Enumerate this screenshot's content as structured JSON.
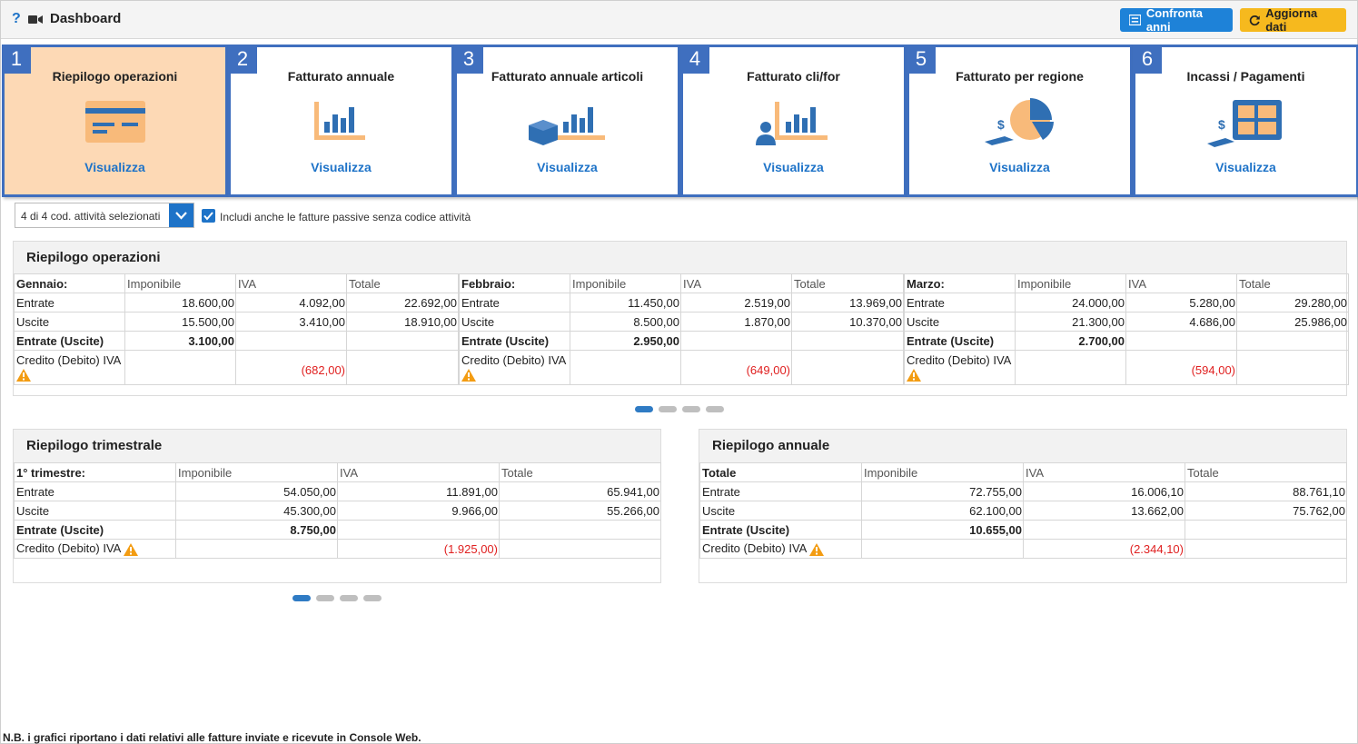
{
  "header": {
    "help": "?",
    "title": "Dashboard",
    "compare_label": "Confronta anni",
    "refresh_label": "Aggiorna dati"
  },
  "tiles": [
    {
      "num": "1",
      "label": "Riepilogo operazioni",
      "link": "Visualizza",
      "icon": "card-icon",
      "active": true
    },
    {
      "num": "2",
      "label": "Fatturato annuale",
      "link": "Visualizza",
      "icon": "bar-chart-icon"
    },
    {
      "num": "3",
      "label": "Fatturato annuale articoli",
      "link": "Visualizza",
      "icon": "box-chart-icon"
    },
    {
      "num": "4",
      "label": "Fatturato cli/for",
      "link": "Visualizza",
      "icon": "person-chart-icon"
    },
    {
      "num": "5",
      "label": "Fatturato per regione",
      "link": "Visualizza",
      "icon": "pie-money-icon"
    },
    {
      "num": "6",
      "label": "Incassi / Pagamenti",
      "link": "Visualizza",
      "icon": "grid-money-icon"
    }
  ],
  "filter": {
    "selected": "4 di 4 cod. attività selezionati",
    "checkbox_label": "Includi anche le fatture passive senza codice attività",
    "checked": true
  },
  "ops": {
    "title": "Riepilogo operazioni",
    "cols": [
      "Imponibile",
      "IVA",
      "Totale"
    ],
    "row_labels": [
      "Entrate",
      "Uscite",
      "Entrate (Uscite)",
      "Credito (Debito) IVA"
    ],
    "months": [
      {
        "name": "Gennaio:",
        "entrate": [
          "18.600,00",
          "4.092,00",
          "22.692,00"
        ],
        "uscite": [
          "15.500,00",
          "3.410,00",
          "18.910,00"
        ],
        "net": "3.100,00",
        "iva": "(682,00)"
      },
      {
        "name": "Febbraio:",
        "entrate": [
          "11.450,00",
          "2.519,00",
          "13.969,00"
        ],
        "uscite": [
          "8.500,00",
          "1.870,00",
          "10.370,00"
        ],
        "net": "2.950,00",
        "iva": "(649,00)"
      },
      {
        "name": "Marzo:",
        "entrate": [
          "24.000,00",
          "5.280,00",
          "29.280,00"
        ],
        "uscite": [
          "21.300,00",
          "4.686,00",
          "25.986,00"
        ],
        "net": "2.700,00",
        "iva": "(594,00)"
      }
    ]
  },
  "quarter": {
    "title": "Riepilogo trimestrale",
    "name": "1° trimestre:",
    "entrate": [
      "54.050,00",
      "11.891,00",
      "65.941,00"
    ],
    "uscite": [
      "45.300,00",
      "9.966,00",
      "55.266,00"
    ],
    "net": "8.750,00",
    "iva": "(1.925,00)"
  },
  "annual": {
    "title": "Riepilogo annuale",
    "name": "Totale",
    "entrate": [
      "72.755,00",
      "16.006,10",
      "88.761,10"
    ],
    "uscite": [
      "62.100,00",
      "13.662,00",
      "75.762,00"
    ],
    "net": "10.655,00",
    "iva": "(2.344,10)"
  },
  "note": "N.B. i grafici riportano i dati relativi alle fatture inviate e ricevute in Console Web.",
  "colors": {
    "accent": "#1e73c8",
    "tile_border": "#3f6fbf",
    "active_tile": "#fdd9b5",
    "warning": "#f39c12",
    "negative": "#e02020",
    "icon_orange": "#f8ba7a",
    "icon_blue": "#2f6fb3"
  }
}
